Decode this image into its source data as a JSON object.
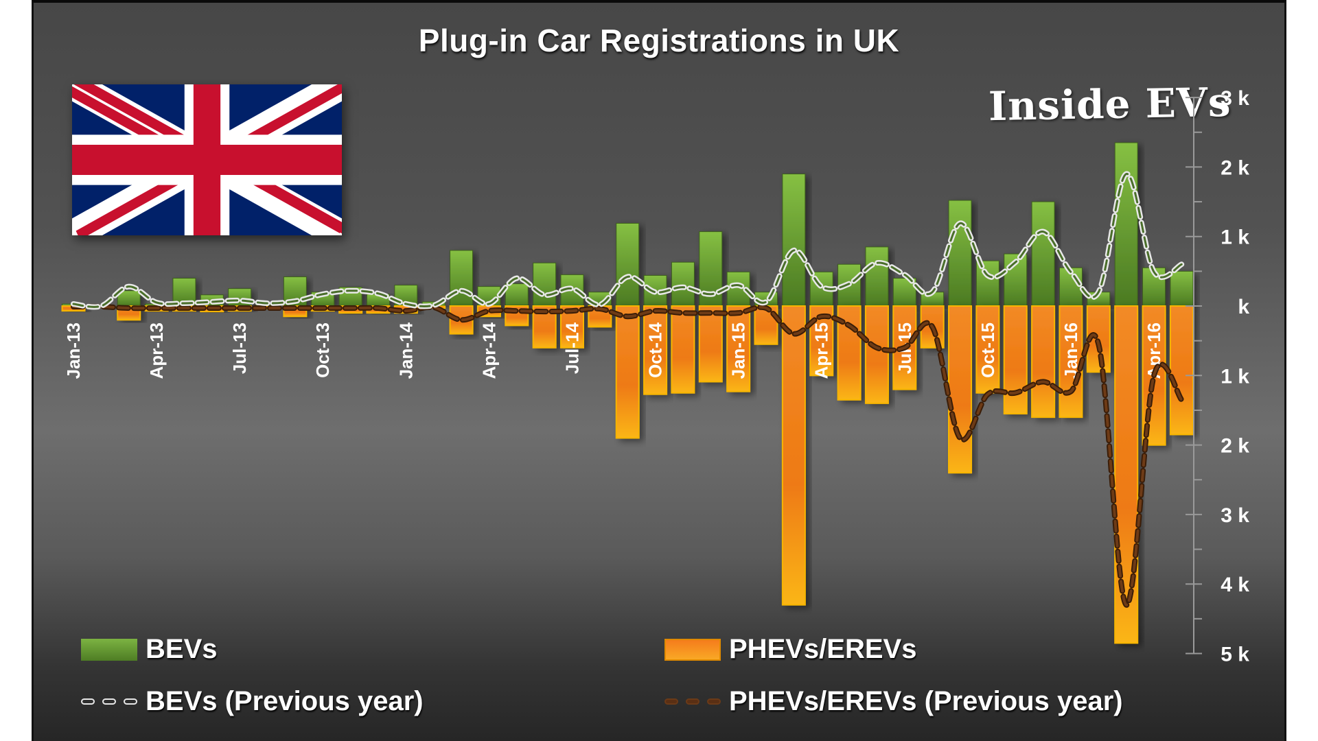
{
  "title": "Plug-in Car Registrations in UK",
  "brand": "Inside EVs",
  "flag": "united-kingdom-flag",
  "colors": {
    "bev": "#5f9630",
    "bev_light": "#86c043",
    "phev": "#f07c16",
    "phev_light": "#fbb316",
    "bev_prev_line": "#e6e6e6",
    "phev_prev_line": "#5a2f14"
  },
  "legend": {
    "bev": "BEVs",
    "phev": "PHEVs/EREVs",
    "bev_prev": "BEVs (Previous year)",
    "phev_prev": "PHEVs/EREVs (Previous year)"
  },
  "chart_data": {
    "type": "bar",
    "title": "Plug-in Car Registrations in UK",
    "xlabel": "",
    "ylabel": "",
    "ylim": [
      -5000,
      3000
    ],
    "y_ticks": [
      "3 k",
      "2 k",
      "1 k",
      "k",
      "1 k",
      "2 k",
      "3 k",
      "4 k",
      "5 k"
    ],
    "y_tick_values": [
      3000,
      2000,
      1000,
      0,
      -1000,
      -2000,
      -3000,
      -4000,
      -5000
    ],
    "grid": false,
    "legend_position": "bottom",
    "categories": [
      "Jan-13",
      "Feb-13",
      "Mar-13",
      "Apr-13",
      "May-13",
      "Jun-13",
      "Jul-13",
      "Aug-13",
      "Sep-13",
      "Oct-13",
      "Nov-13",
      "Dec-13",
      "Jan-14",
      "Feb-14",
      "Mar-14",
      "Apr-14",
      "May-14",
      "Jun-14",
      "Jul-14",
      "Aug-14",
      "Sep-14",
      "Oct-14",
      "Nov-14",
      "Dec-14",
      "Jan-15",
      "Feb-15",
      "Mar-15",
      "Apr-15",
      "May-15",
      "Jun-15",
      "Jul-15",
      "Aug-15",
      "Sep-15",
      "Oct-15",
      "Nov-15",
      "Dec-15",
      "Jan-16",
      "Feb-16",
      "Mar-16",
      "Apr-16",
      "May-16"
    ],
    "x_tick_labels": [
      "Jan-13",
      "Apr-13",
      "Jul-13",
      "Oct-13",
      "Jan-14",
      "Apr-14",
      "Jul-14",
      "Oct-14",
      "Jan-15",
      "Apr-15",
      "Jul-15",
      "Oct-15",
      "Jan-16",
      "Apr-16"
    ],
    "series": [
      {
        "name": "BEVs",
        "direction": "up",
        "values": [
          30,
          10,
          220,
          30,
          400,
          160,
          250,
          20,
          420,
          200,
          270,
          170,
          300,
          60,
          800,
          280,
          320,
          620,
          450,
          200,
          1190,
          440,
          630,
          1070,
          490,
          200,
          1900,
          490,
          600,
          850,
          400,
          200,
          1520,
          650,
          750,
          1500,
          550,
          200,
          2350,
          550,
          500
        ]
      },
      {
        "name": "PHEVs/EREVs",
        "direction": "down",
        "values": [
          70,
          20,
          200,
          70,
          70,
          80,
          70,
          40,
          150,
          70,
          100,
          100,
          100,
          30,
          400,
          150,
          280,
          600,
          600,
          300,
          1900,
          1270,
          1250,
          1090,
          1230,
          550,
          4300,
          1000,
          1350,
          1400,
          1200,
          600,
          2400,
          1250,
          1550,
          1600,
          1600,
          950,
          4850,
          2000,
          1850
        ]
      },
      {
        "name": "BEVs (Previous year)",
        "type": "line",
        "values": [
          30,
          0,
          280,
          50,
          40,
          60,
          80,
          40,
          70,
          170,
          220,
          180,
          30,
          10,
          220,
          30,
          400,
          160,
          250,
          20,
          420,
          200,
          270,
          170,
          300,
          60,
          800,
          280,
          320,
          620,
          450,
          200,
          1190,
          440,
          630,
          1070,
          490,
          200,
          1900,
          490,
          600
        ]
      },
      {
        "name": "PHEVs/EREVs (Previous year)",
        "type": "line",
        "values": [
          10,
          10,
          30,
          30,
          30,
          30,
          30,
          30,
          30,
          30,
          30,
          30,
          70,
          20,
          200,
          70,
          70,
          80,
          70,
          40,
          150,
          70,
          100,
          100,
          100,
          30,
          400,
          150,
          280,
          600,
          600,
          300,
          1900,
          1270,
          1250,
          1090,
          1230,
          550,
          4300,
          1000,
          1350
        ]
      }
    ]
  }
}
